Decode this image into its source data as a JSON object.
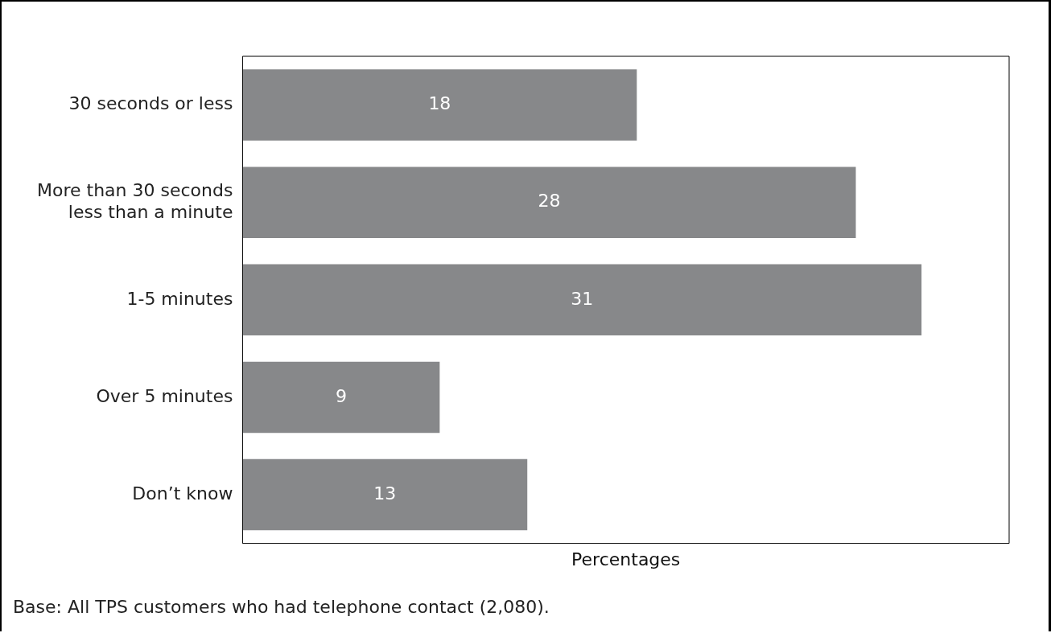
{
  "chart_data": {
    "type": "bar",
    "orientation": "horizontal",
    "categories": [
      "30 seconds or less",
      "More than 30 seconds less than a minute",
      "1-5 minutes",
      "Over 5 minutes",
      "Don’t know"
    ],
    "values": [
      18,
      28,
      31,
      9,
      13
    ],
    "color": "#87888a",
    "xlim": [
      0,
      35
    ],
    "xlabel": "Percentages",
    "data_labels": true,
    "grid": false,
    "legend": false,
    "tick_labels": "y",
    "annotations": [
      "Base: All TPS customers who had telephone contact (2,080)."
    ]
  }
}
